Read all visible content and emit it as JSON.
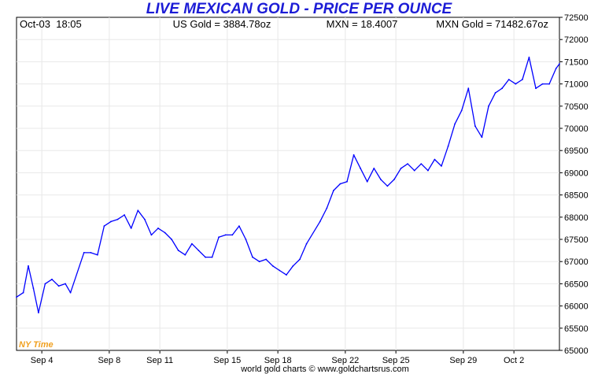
{
  "header": {
    "title": "LIVE MEXICAN GOLD - PRICE PER OUNCE",
    "datetime": "Oct-03  18:05",
    "us_gold": "US Gold = 3884.78oz",
    "mxn_rate": "MXN = 18.4007",
    "mxn_gold": "MXN Gold = 71482.67oz"
  },
  "timezone_label": "NY Time",
  "credit": "world gold charts © www.goldchartsrus.com",
  "colors": {
    "title": "#1c1cd6",
    "line": "#0000ff",
    "grid": "#e8e8e8",
    "timezone": "#f0a020"
  },
  "chart_data": {
    "type": "line",
    "title": "LIVE MEXICAN GOLD - PRICE PER OUNCE",
    "xlabel": "",
    "ylabel": "",
    "ylim": [
      65000,
      72500
    ],
    "yticks": [
      65000,
      65500,
      66000,
      66500,
      67000,
      67500,
      68000,
      68500,
      69000,
      69500,
      70000,
      70500,
      71000,
      71500,
      72000,
      72500
    ],
    "xticks": [
      "Sep 4",
      "Sep 8",
      "Sep 11",
      "Sep 15",
      "Sep 18",
      "Sep 22",
      "Sep 25",
      "Sep 29",
      "Oct 2"
    ],
    "xtick_positions": [
      1.5,
      5.5,
      8.5,
      12.5,
      15.5,
      19.5,
      22.5,
      26.5,
      29.5
    ],
    "xlim": [
      0,
      32.2
    ],
    "grid": true,
    "series": [
      {
        "x": [
          0,
          0.4,
          0.7,
          1.0,
          1.3,
          1.7,
          2.1,
          2.5,
          2.9,
          3.2,
          4.0,
          4.4,
          4.8,
          5.2,
          5.6,
          6.0,
          6.4,
          6.8,
          7.2,
          7.6,
          8.0,
          8.4,
          8.8,
          9.2,
          9.6,
          10.0,
          10.4,
          10.8,
          11.2,
          11.6,
          12.0,
          12.4,
          12.8,
          13.2,
          13.6,
          14.0,
          14.4,
          14.8,
          15.2,
          15.6,
          16.0,
          16.4,
          16.8,
          17.2,
          18.0,
          18.4,
          18.8,
          19.2,
          19.6,
          20.0,
          20.4,
          20.8,
          21.2,
          21.6,
          22.0,
          22.4,
          22.8,
          23.2,
          23.6,
          24.0,
          24.4,
          24.8,
          25.2,
          25.6,
          26.0,
          26.4,
          26.8,
          27.2,
          27.6,
          28.0,
          28.4,
          28.8,
          29.2,
          29.6,
          30.0,
          30.4,
          30.8,
          31.2,
          31.6,
          32.0,
          32.2
        ],
        "values": [
          66200,
          66300,
          66900,
          66400,
          65850,
          66500,
          66600,
          66450,
          66500,
          66300,
          67200,
          67200,
          67150,
          67800,
          67900,
          67950,
          68050,
          67750,
          68150,
          67950,
          67600,
          67750,
          67650,
          67500,
          67250,
          67150,
          67400,
          67250,
          67100,
          67100,
          67550,
          67600,
          67600,
          67800,
          67500,
          67100,
          67000,
          67050,
          66900,
          66800,
          66700,
          66900,
          67050,
          67400,
          67900,
          68200,
          68600,
          68750,
          68800,
          69400,
          69100,
          68800,
          69100,
          68850,
          68700,
          68850,
          69100,
          69200,
          69050,
          69200,
          69050,
          69300,
          69150,
          69600,
          70100,
          70400,
          70900,
          70050,
          69800,
          70500,
          70800,
          70900,
          71100,
          71000,
          71100,
          71600,
          70900,
          71000,
          71000,
          71350,
          71450
        ]
      }
    ]
  }
}
